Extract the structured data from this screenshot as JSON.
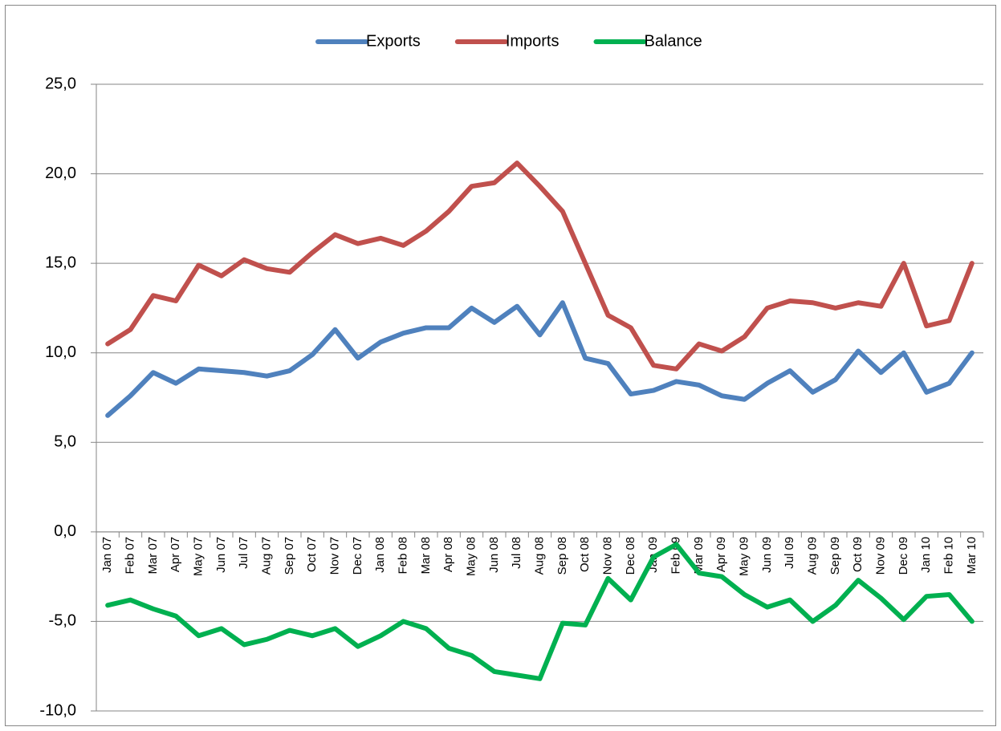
{
  "chart_data": {
    "type": "line",
    "categories": [
      "Jan 07",
      "Feb 07",
      "Mar 07",
      "Apr 07",
      "May 07",
      "Jun 07",
      "Jul 07",
      "Aug 07",
      "Sep 07",
      "Oct 07",
      "Nov 07",
      "Dec 07",
      "Jan 08",
      "Feb 08",
      "Mar 08",
      "Apr 08",
      "May 08",
      "Jun 08",
      "Jul 08",
      "Aug 08",
      "Sep 08",
      "Oct 08",
      "Nov 08",
      "Dec 08",
      "Jan 09",
      "Feb 09",
      "Mar 09",
      "Apr 09",
      "May 09",
      "Jun 09",
      "Jul 09",
      "Aug 09",
      "Sep 09",
      "Oct 09",
      "Nov 09",
      "Dec 09",
      "Jan 10",
      "Feb 10",
      "Mar 10"
    ],
    "series": [
      {
        "name": "Exports",
        "color": "#4f81bd",
        "values": [
          6.5,
          7.6,
          8.9,
          8.3,
          9.1,
          9.0,
          8.9,
          8.7,
          9.0,
          9.9,
          11.3,
          9.7,
          10.6,
          11.1,
          11.4,
          11.4,
          12.5,
          11.7,
          12.6,
          11.0,
          12.8,
          9.7,
          9.4,
          7.7,
          7.9,
          8.4,
          8.2,
          7.6,
          7.4,
          8.3,
          9.0,
          7.8,
          8.5,
          10.1,
          8.9,
          10.0,
          7.8,
          8.3,
          10.0
        ]
      },
      {
        "name": "Imports",
        "color": "#c0504d",
        "values": [
          10.5,
          11.3,
          13.2,
          12.9,
          14.9,
          14.3,
          15.2,
          14.7,
          14.5,
          15.6,
          16.6,
          16.1,
          16.4,
          16.0,
          16.8,
          17.9,
          19.3,
          19.5,
          20.6,
          19.3,
          17.9,
          15.0,
          12.1,
          11.4,
          9.3,
          9.1,
          10.5,
          10.1,
          10.9,
          12.5,
          12.9,
          12.8,
          12.5,
          12.8,
          12.6,
          15.0,
          11.5,
          11.8,
          15.0
        ]
      },
      {
        "name": "Balance",
        "color": "#00b050",
        "values": [
          -4.1,
          -3.8,
          -4.3,
          -4.7,
          -5.8,
          -5.4,
          -6.3,
          -6.0,
          -5.5,
          -5.8,
          -5.4,
          -6.4,
          -5.8,
          -5.0,
          -5.4,
          -6.5,
          -6.9,
          -7.8,
          -8.0,
          -8.2,
          -5.1,
          -5.2,
          -2.6,
          -3.8,
          -1.4,
          -0.7,
          -2.3,
          -2.5,
          -3.5,
          -4.2,
          -3.8,
          -5.0,
          -4.1,
          -2.7,
          -3.7,
          -4.9,
          -3.6,
          -3.5,
          -5.0
        ]
      }
    ],
    "ylim": [
      -10,
      25
    ],
    "yticks": [
      {
        "value": -10,
        "label": "-10,0"
      },
      {
        "value": -5,
        "label": "-5,0"
      },
      {
        "value": 0,
        "label": "0,0"
      },
      {
        "value": 5,
        "label": "5,0"
      },
      {
        "value": 10,
        "label": "10,0"
      },
      {
        "value": 15,
        "label": "15,0"
      },
      {
        "value": 20,
        "label": "20,0"
      },
      {
        "value": 25,
        "label": "25,0"
      }
    ],
    "grid": true,
    "legend": "top"
  }
}
